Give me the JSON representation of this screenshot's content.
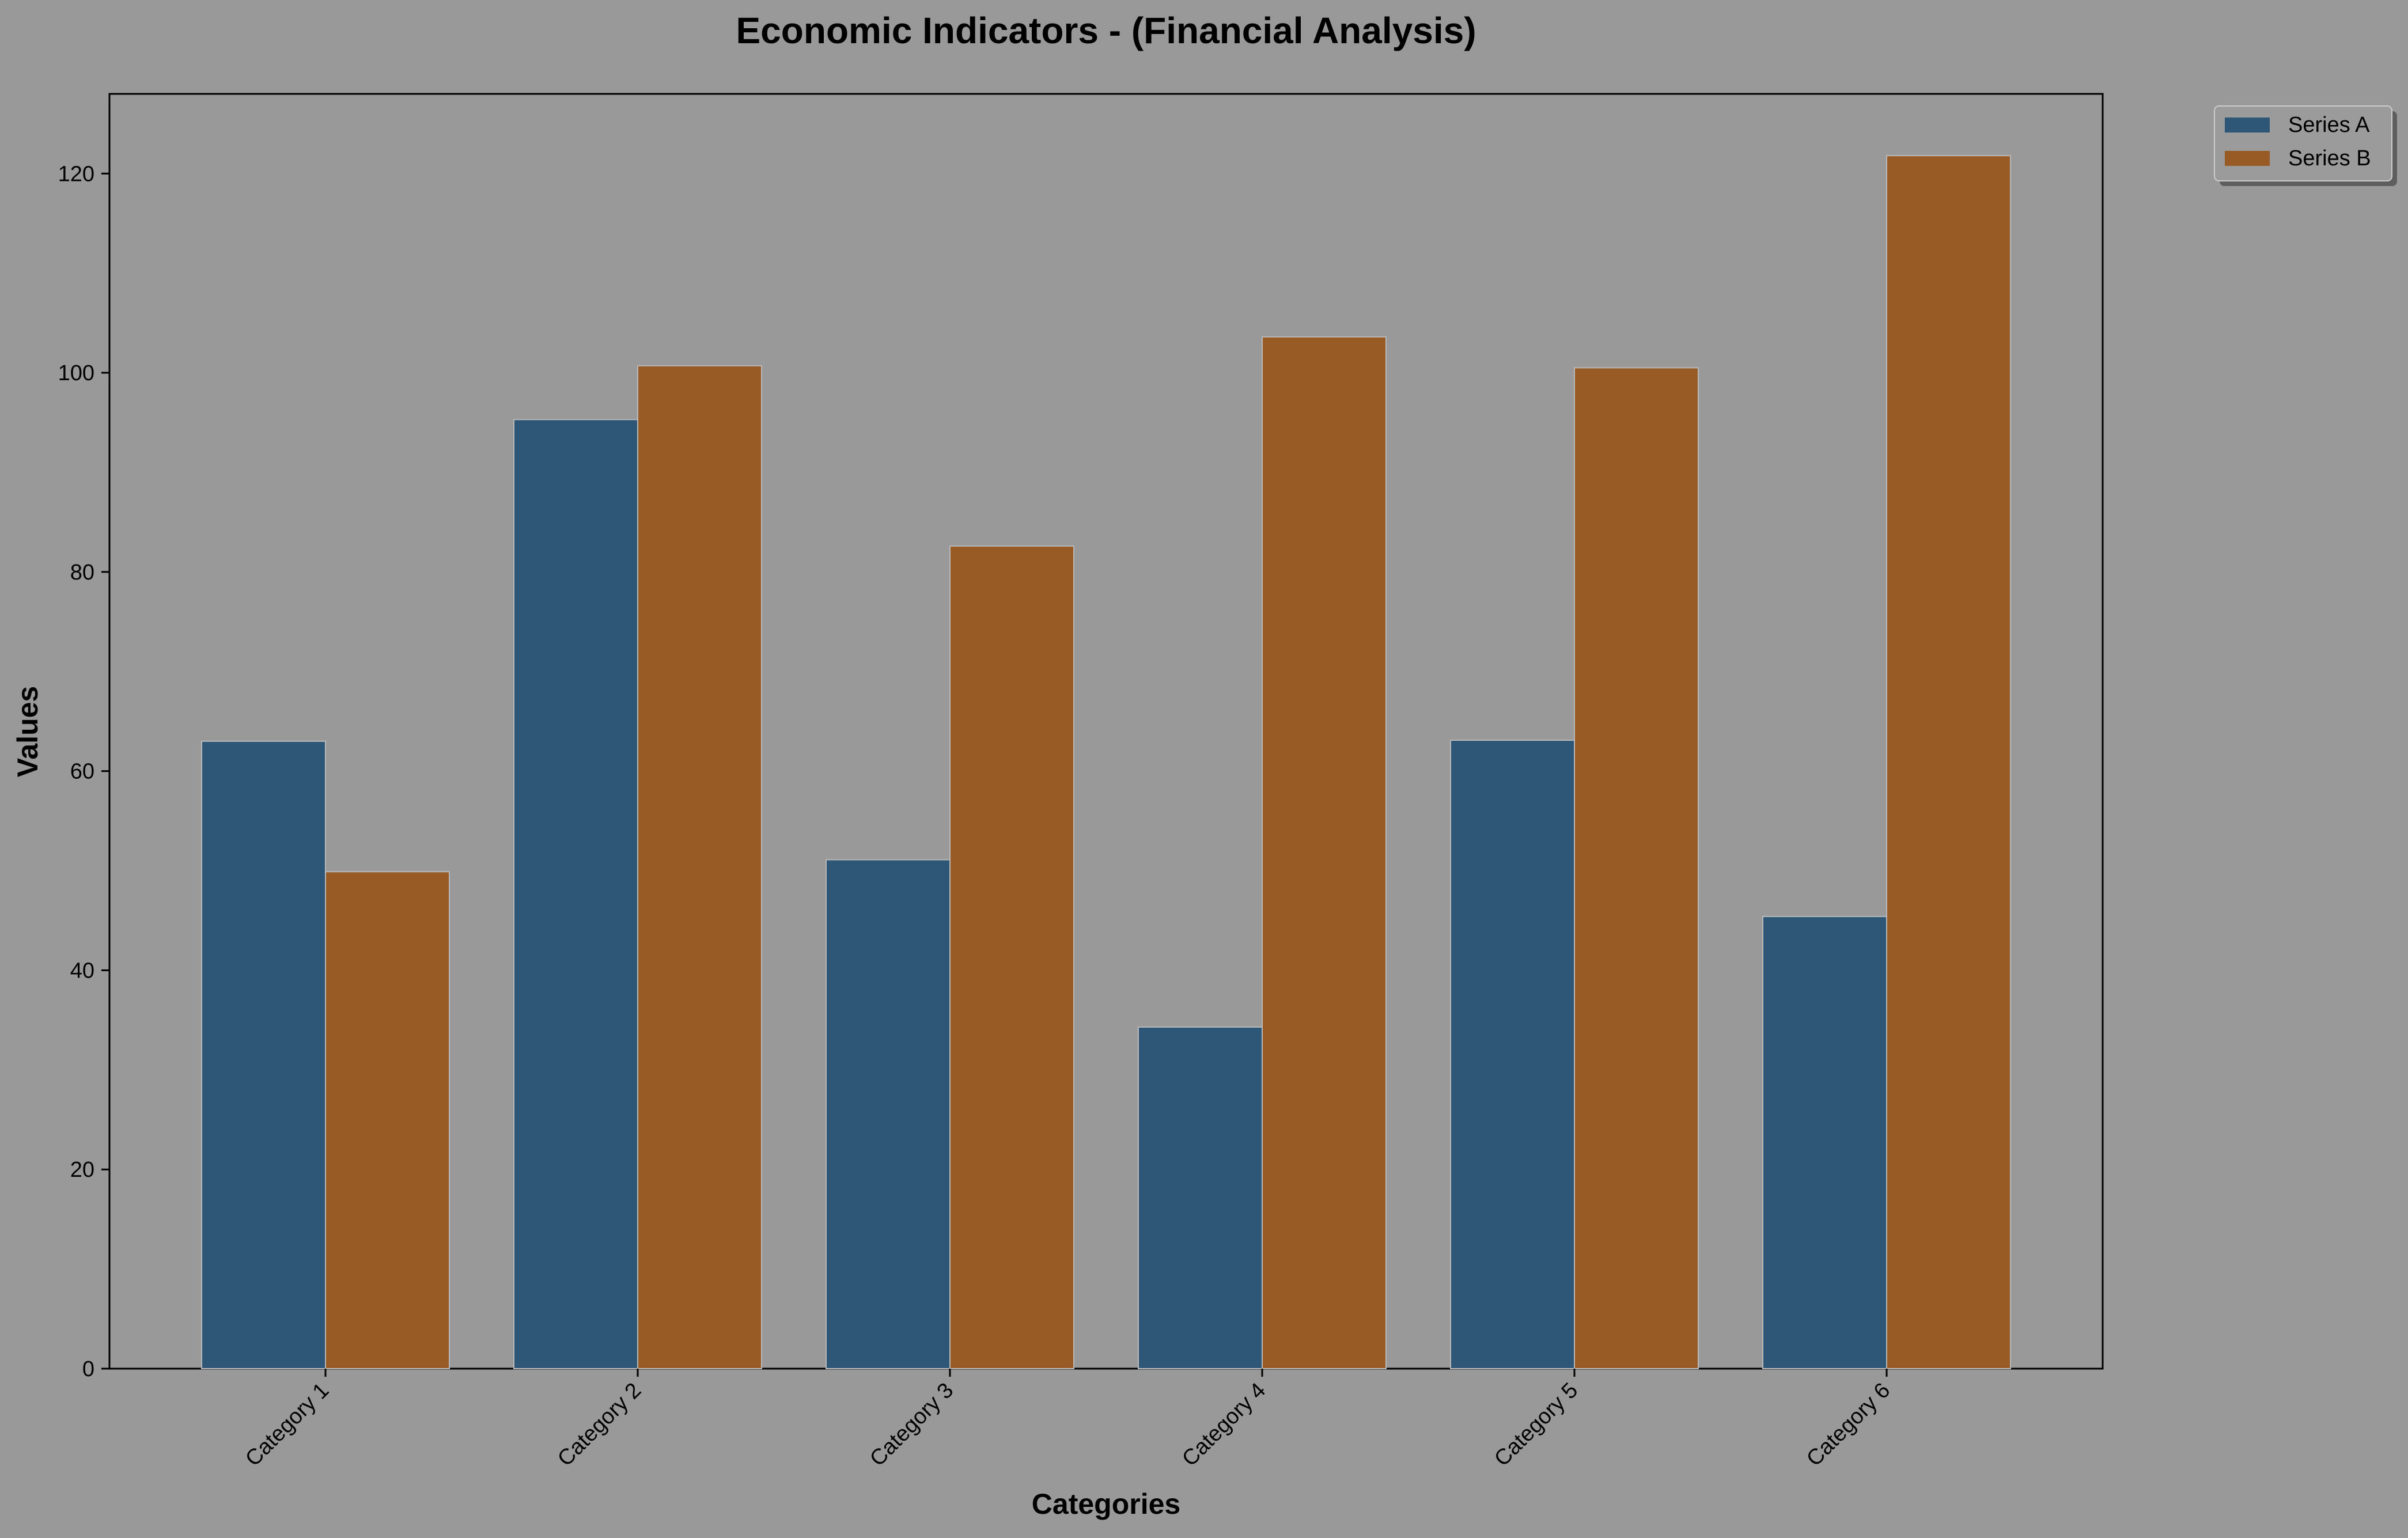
{
  "chart_data": {
    "type": "bar",
    "title": "Economic Indicators - (Financial Analysis)",
    "xlabel": "Categories",
    "ylabel": "Values",
    "categories": [
      "Category 1",
      "Category 2",
      "Category 3",
      "Category 4",
      "Category 5",
      "Category 6"
    ],
    "series": [
      {
        "name": "Series A",
        "color": "#2e5677",
        "values": [
          63,
          95.3,
          51.1,
          34.3,
          63.1,
          45.4
        ]
      },
      {
        "name": "Series B",
        "color": "#995b26",
        "values": [
          49.9,
          100.7,
          82.6,
          103.6,
          100.5,
          121.8
        ]
      }
    ],
    "ylim": [
      0,
      128
    ],
    "yticks": [
      0,
      20,
      40,
      60,
      80,
      100,
      120
    ],
    "grid": false,
    "legend_position": "outside top-right",
    "background_color": "#999999"
  }
}
